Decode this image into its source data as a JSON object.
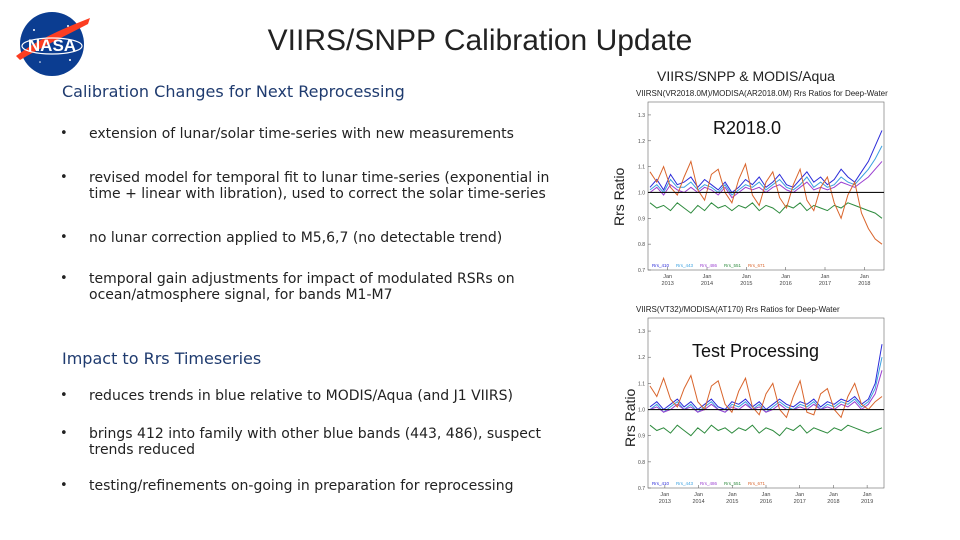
{
  "slide": {
    "title": "VIIRS/SNPP Calibration Update"
  },
  "logo": {
    "text": "NASA",
    "colors": {
      "blue": "#0b3d91",
      "red": "#fc3d21"
    }
  },
  "section1": {
    "heading": "Calibration Changes for Next Reprocessing",
    "bullets": [
      {
        "line1": "extension of lunar/solar time-series with new measurements",
        "line2": ""
      },
      {
        "line1": "revised model for temporal fit to lunar time-series (exponential in",
        "line2": "time + linear with libration), used to correct the solar time-series"
      },
      {
        "line1": "no lunar correction applied to M5,6,7 (no detectable trend)",
        "line2": ""
      },
      {
        "line1": "temporal gain adjustments for impact of modulated RSRs on",
        "line2": "ocean/atmosphere signal, for bands M1-M7"
      }
    ]
  },
  "section2": {
    "heading": "Impact to Rrs Timeseries",
    "bullets": [
      {
        "line1": "reduces trends in blue relative to MODIS/Aqua (and J1 VIIRS)",
        "line2": ""
      },
      {
        "line1": "brings 412 into family with other blue bands (443, 486), suspect",
        "line2": "trends reduced"
      },
      {
        "line1": "testing/refinements on-going in preparation for reprocessing",
        "line2": ""
      }
    ]
  },
  "figure_caption": "VIIRS/SNPP & MODIS/Aqua",
  "chart_data": [
    {
      "type": "line",
      "plot_title": "VIIRSN(VR2018.0M)/MODISA(AR2018.0M) Rrs Ratios for Deep-Water",
      "label": "R2018.0",
      "ylabel": "Rrs Ratio",
      "yticks": [
        "1.3",
        "1.2",
        "1.1",
        "1.0",
        "0.9",
        "0.8",
        "0.7"
      ],
      "ylim": [
        0.7,
        1.35
      ],
      "xticks": [
        "Jan 2013",
        "Jan 2014",
        "Jan 2015",
        "Jan 2016",
        "Jan 2017",
        "Jan 2018"
      ],
      "reference_line": 1.0,
      "legend": [
        "Rrs_410",
        "Rrs_443",
        "Rrs_486",
        "Rrs_551",
        "Rrs_671"
      ],
      "series": [
        {
          "name": "Rrs_410",
          "color": "#2b2bd9",
          "values": [
            1.02,
            1.05,
            1.01,
            1.07,
            1.03,
            1.04,
            1.06,
            1.02,
            1.05,
            1.03,
            1.01,
            1.04,
            1.0,
            1.02,
            1.05,
            1.03,
            1.06,
            1.02,
            1.04,
            1.07,
            1.03,
            1.02,
            1.05,
            1.08,
            1.04,
            1.06,
            1.03,
            1.05,
            1.09,
            1.06,
            1.04,
            1.08,
            1.12,
            1.18,
            1.24
          ]
        },
        {
          "name": "Rrs_443",
          "color": "#3aa0e0",
          "values": [
            1.01,
            1.03,
            1.0,
            1.05,
            1.02,
            1.02,
            1.04,
            1.01,
            1.03,
            1.02,
            1.0,
            1.03,
            0.99,
            1.01,
            1.03,
            1.02,
            1.04,
            1.01,
            1.03,
            1.05,
            1.02,
            1.01,
            1.03,
            1.06,
            1.02,
            1.04,
            1.02,
            1.03,
            1.06,
            1.04,
            1.03,
            1.06,
            1.09,
            1.13,
            1.18
          ]
        },
        {
          "name": "Rrs_486",
          "color": "#9a3fd0",
          "values": [
            1.0,
            1.02,
            0.99,
            1.03,
            1.01,
            1.0,
            1.02,
            1.0,
            1.02,
            1.01,
            0.99,
            1.02,
            0.98,
            1.0,
            1.02,
            1.01,
            1.02,
            1.0,
            1.02,
            1.03,
            1.01,
            1.0,
            1.02,
            1.04,
            1.01,
            1.02,
            1.01,
            1.02,
            1.04,
            1.03,
            1.02,
            1.04,
            1.06,
            1.09,
            1.12
          ]
        },
        {
          "name": "Rrs_551",
          "color": "#2e8b3e",
          "values": [
            0.96,
            0.94,
            0.95,
            0.93,
            0.96,
            0.94,
            0.92,
            0.95,
            0.93,
            0.96,
            0.94,
            0.95,
            0.93,
            0.95,
            0.94,
            0.96,
            0.93,
            0.95,
            0.94,
            0.92,
            0.95,
            0.94,
            0.96,
            0.93,
            0.95,
            0.94,
            0.93,
            0.95,
            0.94,
            0.96,
            0.95,
            0.94,
            0.93,
            0.92,
            0.9
          ]
        },
        {
          "name": "Rrs_671",
          "color": "#d9642b",
          "values": [
            1.08,
            1.04,
            1.1,
            1.02,
            0.99,
            1.06,
            1.12,
            1.01,
            0.97,
            1.07,
            1.09,
            1.0,
            0.96,
            1.05,
            1.11,
            0.99,
            0.95,
            1.04,
            1.08,
            0.98,
            0.94,
            1.03,
            1.09,
            0.97,
            0.93,
            1.02,
            1.06,
            0.96,
            0.9,
            0.99,
            1.04,
            0.92,
            0.86,
            0.82,
            0.8
          ]
        }
      ]
    },
    {
      "type": "line",
      "plot_title": "VIIRS(VT32)/MODISA(AT170) Rrs Ratios for Deep-Water",
      "label": "Test Processing",
      "ylabel": "Rrs Ratio",
      "yticks": [
        "1.3",
        "1.2",
        "1.1",
        "1.0",
        "0.9",
        "0.8",
        "0.7"
      ],
      "ylim": [
        0.7,
        1.35
      ],
      "xticks": [
        "Jan 2013",
        "Jan 2014",
        "Jan 2015",
        "Jan 2016",
        "Jan 2017",
        "Jan 2018",
        "Jan 2019"
      ],
      "reference_line": 1.0,
      "legend": [
        "Rrs_410",
        "Rrs_443",
        "Rrs_486",
        "Rrs_551",
        "Rrs_671"
      ],
      "series": [
        {
          "name": "Rrs_410",
          "color": "#2b2bd9",
          "values": [
            1.01,
            1.03,
            1.0,
            1.02,
            1.04,
            1.01,
            1.03,
            1.0,
            1.02,
            1.04,
            1.01,
            1.0,
            1.03,
            1.02,
            1.04,
            1.01,
            1.03,
            1.0,
            1.02,
            1.04,
            1.02,
            1.01,
            1.03,
            1.02,
            1.04,
            1.01,
            1.03,
            1.02,
            1.04,
            1.03,
            1.05,
            1.02,
            1.04,
            1.1,
            1.25
          ]
        },
        {
          "name": "Rrs_443",
          "color": "#3aa0e0",
          "values": [
            1.0,
            1.02,
            0.99,
            1.01,
            1.03,
            1.0,
            1.02,
            0.99,
            1.01,
            1.03,
            1.0,
            0.99,
            1.02,
            1.01,
            1.03,
            1.0,
            1.02,
            0.99,
            1.01,
            1.03,
            1.01,
            1.0,
            1.02,
            1.01,
            1.03,
            1.0,
            1.02,
            1.01,
            1.03,
            1.02,
            1.04,
            1.01,
            1.03,
            1.08,
            1.2
          ]
        },
        {
          "name": "Rrs_486",
          "color": "#9a3fd0",
          "values": [
            1.0,
            1.01,
            0.99,
            1.0,
            1.02,
            1.0,
            1.01,
            0.99,
            1.0,
            1.02,
            1.0,
            0.99,
            1.01,
            1.0,
            1.02,
            1.0,
            1.01,
            0.99,
            1.0,
            1.02,
            1.0,
            1.0,
            1.01,
            1.0,
            1.02,
            1.0,
            1.01,
            1.0,
            1.02,
            1.01,
            1.03,
            1.0,
            1.02,
            1.06,
            1.15
          ]
        },
        {
          "name": "Rrs_551",
          "color": "#2e8b3e",
          "values": [
            0.94,
            0.92,
            0.93,
            0.91,
            0.94,
            0.92,
            0.9,
            0.93,
            0.91,
            0.94,
            0.92,
            0.93,
            0.91,
            0.93,
            0.92,
            0.94,
            0.91,
            0.93,
            0.92,
            0.9,
            0.93,
            0.92,
            0.94,
            0.91,
            0.93,
            0.92,
            0.91,
            0.93,
            0.92,
            0.94,
            0.93,
            0.92,
            0.91,
            0.92,
            0.93
          ]
        },
        {
          "name": "Rrs_671",
          "color": "#d9642b",
          "values": [
            1.09,
            1.05,
            1.12,
            1.04,
            1.01,
            1.08,
            1.13,
            1.03,
            1.0,
            1.09,
            1.11,
            1.02,
            0.99,
            1.07,
            1.12,
            1.01,
            0.98,
            1.06,
            1.1,
            1.0,
            0.97,
            1.05,
            1.11,
            0.99,
            0.98,
            1.06,
            1.08,
            1.0,
            0.97,
            1.05,
            1.1,
            1.02,
            1.0,
            1.03,
            1.05
          ]
        }
      ]
    }
  ]
}
